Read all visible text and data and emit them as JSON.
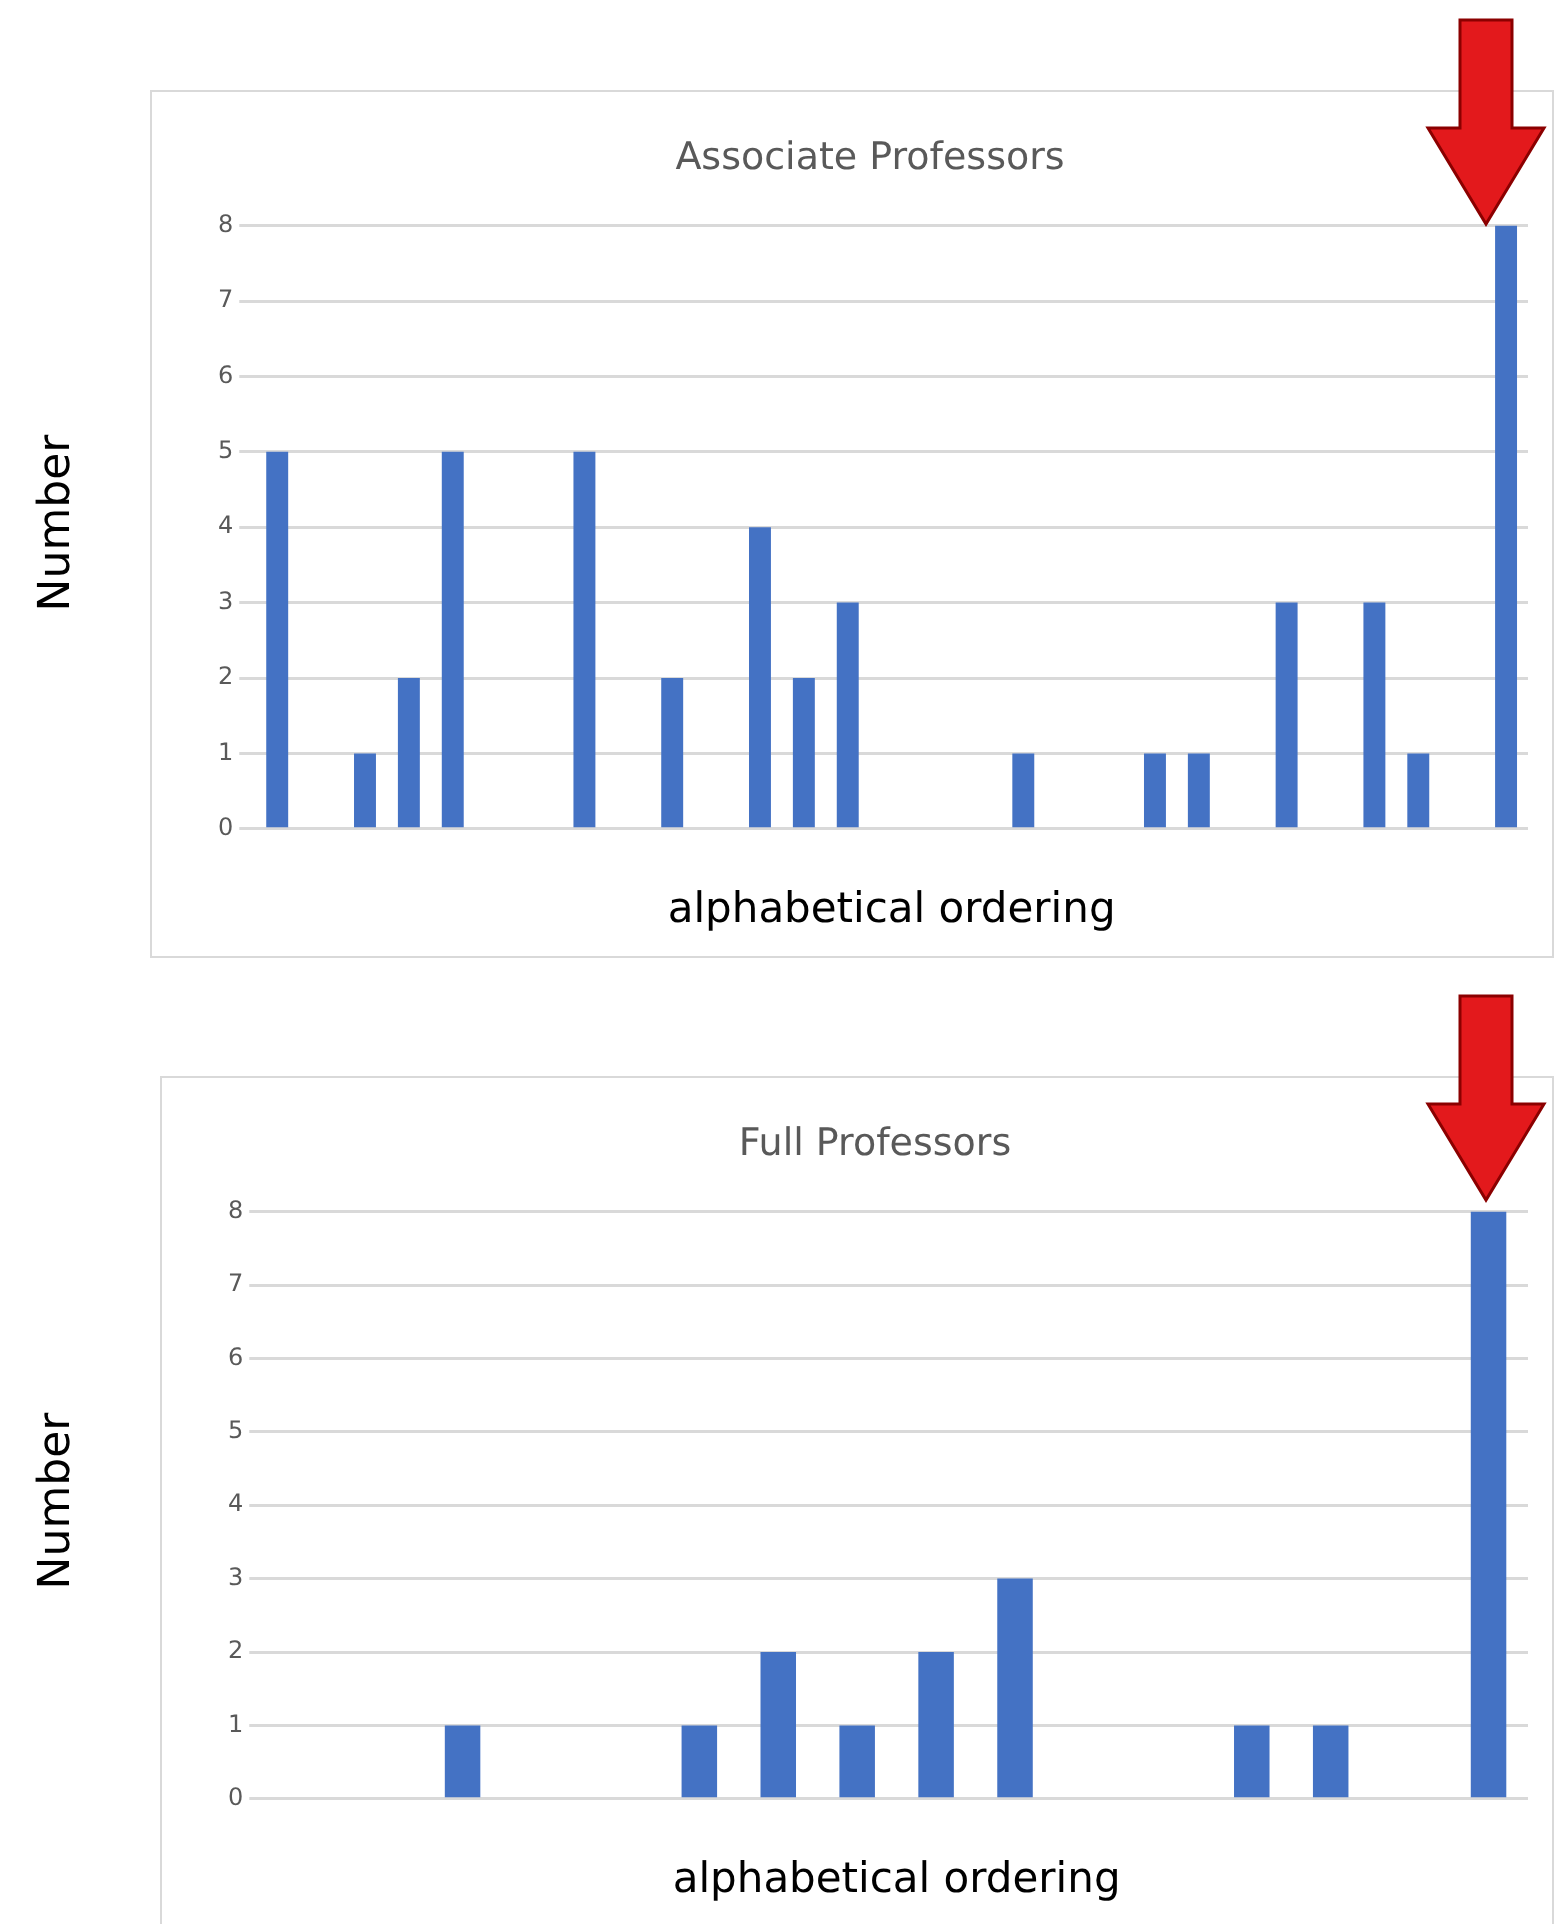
{
  "chart_data": [
    {
      "type": "bar",
      "title": "Associate Professors",
      "xlabel": "alphabetical ordering",
      "ylabel": "Number",
      "categories": [
        null,
        null,
        null,
        null,
        null,
        null,
        null,
        null,
        null,
        null,
        null,
        null,
        null,
        null,
        null,
        null,
        null,
        null,
        null,
        null,
        null,
        null,
        null,
        null,
        null,
        null,
        null,
        null,
        null
      ],
      "series": [
        {
          "color": "#4472c4",
          "values": [
            5,
            0,
            1,
            2,
            5,
            0,
            0,
            5,
            0,
            2,
            0,
            4,
            2,
            3,
            0,
            0,
            0,
            1,
            0,
            0,
            1,
            1,
            0,
            3,
            0,
            3,
            1,
            null,
            8
          ]
        }
      ],
      "ylim": [
        0,
        8
      ],
      "yticks": [
        0,
        1,
        2,
        3,
        4,
        5,
        6,
        7,
        8
      ],
      "grid": "y",
      "legend": false
    },
    {
      "type": "bar",
      "title": "Full Professors",
      "xlabel": "alphabetical ordering",
      "ylabel": "Number",
      "categories": [
        null,
        null,
        null,
        null,
        null,
        null,
        null,
        null,
        null,
        null,
        null,
        null,
        null,
        null,
        null,
        null
      ],
      "series": [
        {
          "color": "#4472c4",
          "values": [
            0,
            0,
            1,
            0,
            0,
            1,
            2,
            1,
            2,
            3,
            0,
            0,
            1,
            1,
            null,
            8
          ]
        }
      ],
      "ylim": [
        0,
        8
      ],
      "yticks": [
        0,
        1,
        2,
        3,
        4,
        5,
        6,
        7,
        8
      ],
      "grid": "y",
      "legend": false
    }
  ]
}
